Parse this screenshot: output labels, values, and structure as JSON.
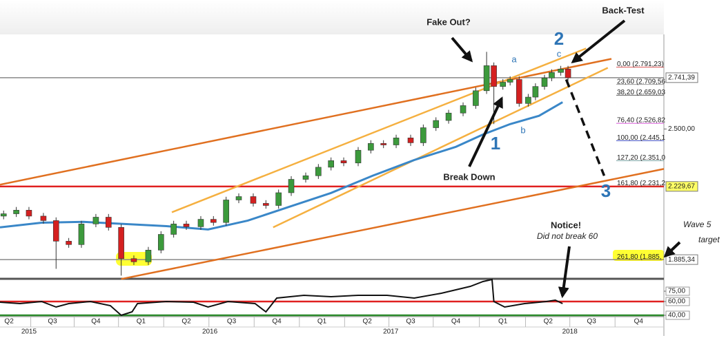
{
  "chart_data": {
    "type": "candlestick",
    "xlim": [
      2015.33,
      2019.0
    ],
    "ylim": [
      1795,
      2945
    ],
    "y2lim": [
      38,
      93
    ],
    "up_color": "#3c9a3c",
    "down_color": "#d42020",
    "candles": {
      "x": [
        2015.35,
        2015.42,
        2015.49,
        2015.57,
        2015.64,
        2015.71,
        2015.78,
        2015.86,
        2015.93,
        2016.0,
        2016.07,
        2016.15,
        2016.22,
        2016.29,
        2016.36,
        2016.44,
        2016.51,
        2016.58,
        2016.65,
        2016.73,
        2016.8,
        2016.87,
        2016.94,
        2017.02,
        2017.09,
        2017.16,
        2017.23,
        2017.31,
        2017.38,
        2017.45,
        2017.52,
        2017.6,
        2017.67,
        2017.74,
        2017.81,
        2017.89,
        2017.96,
        2018.02,
        2018.06,
        2018.11,
        2018.15,
        2018.2,
        2018.25,
        2018.29,
        2018.34,
        2018.38,
        2018.43,
        2018.47
      ],
      "open": [
        2090,
        2101,
        2118,
        2090,
        2069,
        1972,
        1956,
        2053,
        2085,
        2037,
        1890,
        1875,
        1930,
        2004,
        2053,
        2040,
        2075,
        2060,
        2166,
        2182,
        2150,
        2140,
        2200,
        2263,
        2280,
        2320,
        2351,
        2340,
        2400,
        2432,
        2425,
        2458,
        2435,
        2506,
        2540,
        2575,
        2610,
        2680,
        2798,
        2700,
        2720,
        2733,
        2620,
        2650,
        2700,
        2740,
        2766,
        2782
      ],
      "high": [
        2116,
        2133,
        2133,
        2105,
        2084,
        1987,
        2068,
        2100,
        2100,
        2052,
        1905,
        1945,
        2019,
        2068,
        2068,
        2090,
        2090,
        2181,
        2197,
        2197,
        2165,
        2215,
        2278,
        2295,
        2335,
        2366,
        2366,
        2415,
        2447,
        2447,
        2473,
        2473,
        2521,
        2555,
        2590,
        2625,
        2695,
        2863,
        2813,
        2735,
        2748,
        2748,
        2665,
        2715,
        2755,
        2781,
        2797,
        2797
      ],
      "low": [
        2075,
        2086,
        2075,
        2054,
        1842,
        1941,
        1941,
        2038,
        2022,
        1810,
        1860,
        1860,
        1915,
        1989,
        2025,
        2025,
        2045,
        2045,
        2151,
        2135,
        2125,
        2125,
        2185,
        2248,
        2265,
        2305,
        2325,
        2325,
        2385,
        2410,
        2410,
        2420,
        2420,
        2491,
        2525,
        2560,
        2595,
        2665,
        2523,
        2685,
        2705,
        2605,
        2605,
        2635,
        2685,
        2725,
        2751,
        2726
      ],
      "close": [
        2101,
        2118,
        2090,
        2069,
        1972,
        1956,
        2053,
        2085,
        2037,
        1890,
        1875,
        1930,
        2004,
        2053,
        2040,
        2075,
        2060,
        2166,
        2182,
        2150,
        2140,
        2200,
        2263,
        2280,
        2320,
        2351,
        2340,
        2400,
        2432,
        2425,
        2458,
        2435,
        2506,
        2540,
        2575,
        2610,
        2680,
        2798,
        2700,
        2720,
        2733,
        2620,
        2650,
        2700,
        2740,
        2766,
        2782,
        2741
      ]
    },
    "moving_average": {
      "color": "#3a87c8",
      "x": [
        2015.33,
        2015.56,
        2015.79,
        2016.02,
        2016.25,
        2016.48,
        2016.7,
        2016.93,
        2017.16,
        2017.39,
        2017.62,
        2017.85,
        2018.0,
        2018.15,
        2018.31,
        2018.44
      ],
      "values": [
        2037,
        2059,
        2063,
        2053,
        2043,
        2027,
        2069,
        2134,
        2199,
        2280,
        2354,
        2416,
        2474,
        2523,
        2562,
        2626
      ]
    },
    "trendlines": [
      {
        "color": "#e07020",
        "x": [
          2015.33,
          2018.71
        ],
        "values": [
          2238,
          2830
        ]
      },
      {
        "color": "#e07020",
        "x": [
          2016.0,
          2019.0
        ],
        "values": [
          1794,
          2312
        ]
      },
      {
        "color": "#f5b040",
        "x": [
          2016.28,
          2018.57
        ],
        "values": [
          2108,
          2879
        ]
      },
      {
        "color": "#f5b040",
        "x": [
          2016.84,
          2018.69
        ],
        "values": [
          2037,
          2788
        ]
      }
    ],
    "projection": {
      "color": "#111111",
      "x": [
        2018.46,
        2018.67
      ],
      "values": [
        2733,
        2280
      ]
    },
    "hlines": [
      {
        "value": 2229.67,
        "color": "#e02020"
      }
    ],
    "yticks": [
      {
        "value": 2500,
        "label": "2.500,00"
      }
    ],
    "price_markers": [
      {
        "value": 2741.39,
        "label": "2.741,39",
        "color": "#888888",
        "background": "#ffffff"
      },
      {
        "value": 2229.67,
        "label": "2.229,67",
        "color": "#e02020",
        "background": "#ffff66"
      },
      {
        "value": 1885.34,
        "label": "1.885,34",
        "color": "#888888",
        "background": "#ffffff"
      }
    ],
    "fib_levels": [
      {
        "label": "0,00 (2.791,23)",
        "value": 2791.23,
        "color": "#d42020"
      },
      {
        "label": "23,60 (2.709,56",
        "value": 2709.56,
        "color": "#888888"
      },
      {
        "label": "38,20 (2.659,03",
        "value": 2659.03,
        "color": "#222222"
      },
      {
        "label": "76,40 (2.526,82",
        "value": 2526.82,
        "color": "#cc22cc"
      },
      {
        "label": "100,00 (2.445,1",
        "value": 2445.1,
        "color": "#2233bb"
      },
      {
        "label": "127,20 (2.351,0",
        "value": 2351.0,
        "color": "#558888"
      },
      {
        "label": "161,80 (2.231,2",
        "value": 2231.2,
        "color": "#cc3322"
      },
      {
        "label": "261,80 (1.885,",
        "value": 1885,
        "color": "#bba000"
      }
    ],
    "oscillator": {
      "color": "#111111",
      "x": [
        2015.33,
        2015.44,
        2015.56,
        2015.64,
        2015.71,
        2015.83,
        2015.94,
        2016.0,
        2016.06,
        2016.09,
        2016.25,
        2016.4,
        2016.48,
        2016.59,
        2016.74,
        2016.8,
        2016.86,
        2017.01,
        2017.16,
        2017.31,
        2017.47,
        2017.62,
        2017.77,
        2017.93,
        2018.0,
        2018.05,
        2018.06,
        2018.12,
        2018.23,
        2018.35,
        2018.4,
        2018.44
      ],
      "values": [
        59,
        57,
        60,
        52,
        57,
        60,
        54,
        40,
        45,
        57,
        60,
        59,
        52,
        60,
        57,
        45,
        65,
        69,
        67,
        69,
        69,
        65,
        72,
        82,
        89,
        92,
        60,
        52,
        57,
        60,
        62,
        57
      ]
    },
    "osc_hlines": [
      {
        "value": 60,
        "color": "#e02020"
      },
      {
        "value": 40,
        "color": "#2a8a2a"
      }
    ],
    "y2ticks": [
      {
        "value": 75,
        "label": "75,00"
      },
      {
        "value": 60,
        "label": "60,00"
      },
      {
        "value": 40,
        "label": "40,00"
      }
    ],
    "quarter_ticks": [
      {
        "value": 2015.38,
        "label": "Q2"
      },
      {
        "value": 2015.62,
        "label": "Q3"
      },
      {
        "value": 2015.86,
        "label": "Q4"
      },
      {
        "value": 2016.11,
        "label": "Q1"
      },
      {
        "value": 2016.36,
        "label": "Q2"
      },
      {
        "value": 2016.61,
        "label": "Q3"
      },
      {
        "value": 2016.86,
        "label": "Q4"
      },
      {
        "value": 2017.11,
        "label": "Q1"
      },
      {
        "value": 2017.36,
        "label": "Q2"
      },
      {
        "value": 2017.6,
        "label": "Q3"
      },
      {
        "value": 2017.85,
        "label": "Q4"
      },
      {
        "value": 2018.11,
        "label": "Q1"
      },
      {
        "value": 2018.36,
        "label": "Q2"
      },
      {
        "value": 2018.6,
        "label": "Q3"
      },
      {
        "value": 2018.86,
        "label": "Q4"
      }
    ],
    "year_ticks": [
      {
        "value": 2015.49,
        "label": "2015"
      },
      {
        "value": 2016.49,
        "label": "2016"
      },
      {
        "value": 2017.49,
        "label": "2017"
      },
      {
        "value": 2018.48,
        "label": "2018"
      }
    ],
    "annotations": {
      "fake_out": "Fake Out?",
      "back_test": "Back-Test",
      "wave2": "2",
      "wave_c": "c",
      "wave_a": "a",
      "wave_b": "b",
      "wave1": "1",
      "break_down": "Break Down",
      "wave3": "3",
      "notice": "Notice!",
      "notice_sub": "Did not break 60",
      "wave5": "Wave 5",
      "target": "target"
    }
  }
}
